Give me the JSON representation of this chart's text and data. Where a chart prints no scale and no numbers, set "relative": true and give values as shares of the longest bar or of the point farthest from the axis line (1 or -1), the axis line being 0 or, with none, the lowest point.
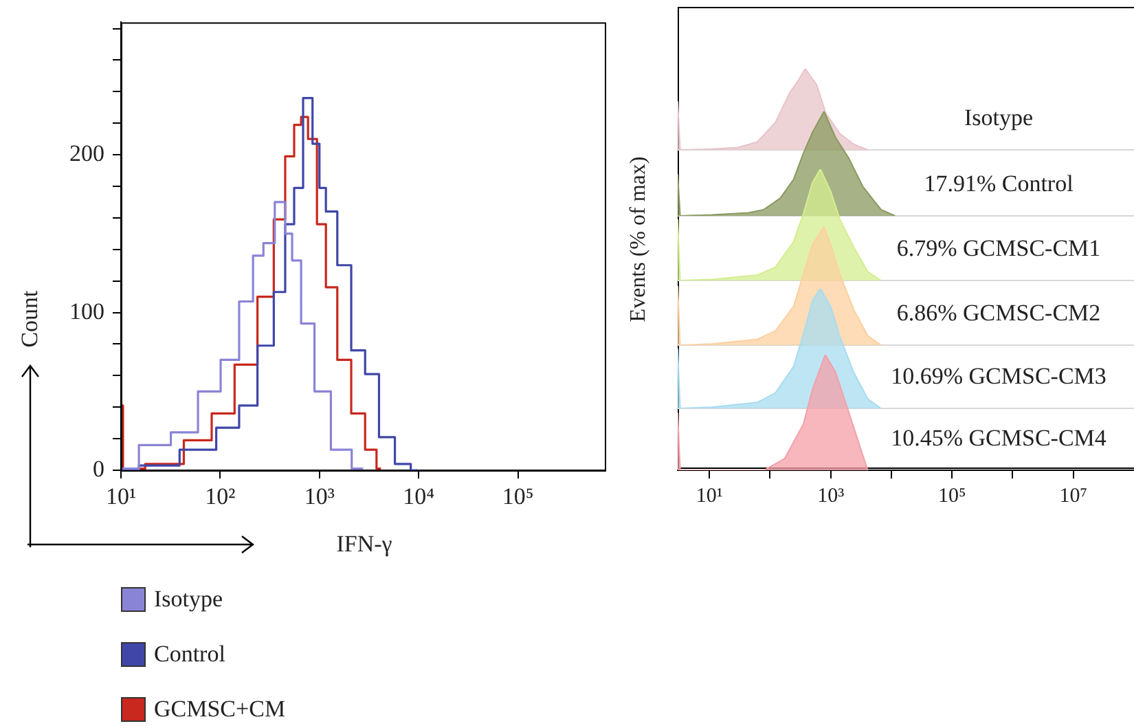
{
  "chart_data": [
    {
      "type": "step",
      "xlabel": "IFN-γ",
      "ylabel": "Count",
      "log": "x",
      "xlim": [
        10,
        750000
      ],
      "ylim": [
        0,
        284
      ],
      "xticks": [
        {
          "value": 10,
          "label": "10¹"
        },
        {
          "value": 100,
          "label": "10²"
        },
        {
          "value": 1000,
          "label": "10³"
        },
        {
          "value": 10000,
          "label": "10⁴"
        },
        {
          "value": 100000,
          "label": "10⁵"
        }
      ],
      "yticks": [
        0,
        {
          "value": 20,
          "label": null
        },
        {
          "value": 40,
          "label": null
        },
        {
          "value": 60,
          "label": null
        },
        {
          "value": 80,
          "label": null
        },
        100,
        {
          "value": 120,
          "label": null
        },
        {
          "value": 140,
          "label": null
        },
        {
          "value": 160,
          "label": null
        },
        {
          "value": 180,
          "label": null
        },
        200,
        {
          "value": 220,
          "label": null
        },
        {
          "value": 240,
          "label": null
        },
        {
          "value": 260,
          "label": null
        },
        {
          "value": 280,
          "label": null
        }
      ],
      "legend": "bottom",
      "series": [
        {
          "name": "Isotype",
          "color": "#8a84d6",
          "x": [
            10,
            23,
            44,
            81,
            126,
            191,
            240,
            309,
            407,
            501,
            562,
            759,
            1047,
            1622,
            2754
          ],
          "values": [
            1,
            16,
            24,
            50,
            70,
            107,
            136,
            144,
            170,
            150,
            133,
            93,
            50,
            13,
            1
          ]
        },
        {
          "name": "Control",
          "color": "#3f46a8",
          "x": [
            10,
            23,
            66,
            126,
            191,
            295,
            407,
            501,
            617,
            759,
            955,
            1047,
            1288,
            1778,
            2455,
            3388,
            4677,
            7079,
            9772
          ],
          "values": [
            0,
            3,
            13,
            27,
            41,
            79,
            113,
            156,
            179,
            236,
            207,
            179,
            164,
            130,
            76,
            61,
            21,
            4,
            0
          ]
        },
        {
          "name": "GCMSC+CM",
          "color": "#c8281e",
          "x": [
            10,
            11,
            28,
            66,
            102,
            191,
            295,
            407,
            501,
            617,
            692,
            851,
            1047,
            1288,
            1778,
            2455,
            3388,
            4169
          ],
          "values": [
            41,
            1,
            4,
            19,
            36,
            67,
            110,
            159,
            199,
            219,
            224,
            210,
            156,
            116,
            70,
            36,
            13,
            1
          ]
        }
      ]
    },
    {
      "type": "area",
      "relative": true,
      "ylabel": "Events (% of max)",
      "log": "x",
      "xlim": [
        3,
        100000000
      ],
      "tick_labels": false,
      "annotations": [
        "Isotype"
      ],
      "x": [
        3,
        3.3,
        3.8,
        11,
        30,
        62,
        123,
        209,
        295,
        380,
        589,
        832,
        1413,
        2399,
        4074
      ],
      "series": [
        {
          "color": "#e8c4c8",
          "values": [
            0.6,
            0,
            0,
            0.01,
            0.03,
            0.1,
            0.34,
            0.7,
            0.86,
            1,
            0.8,
            0.45,
            0.2,
            0.07,
            0
          ]
        }
      ]
    },
    {
      "type": "area",
      "relative": true,
      "log": "x",
      "xlim": [
        3,
        100000000
      ],
      "tick_labels": false,
      "annotations": [
        "17.91% Control"
      ],
      "x": [
        3,
        3.3,
        11,
        44,
        79,
        148,
        245,
        355,
        501,
        776,
        1202,
        1995,
        3388,
        6761,
        11482
      ],
      "series": [
        {
          "color": "#8a9a60",
          "values": [
            0.4,
            0,
            0.01,
            0.03,
            0.06,
            0.17,
            0.35,
            0.6,
            0.8,
            1,
            0.75,
            0.55,
            0.28,
            0.06,
            0
          ]
        }
      ]
    },
    {
      "type": "area",
      "relative": true,
      "log": "x",
      "xlim": [
        3,
        100000000
      ],
      "tick_labels": false,
      "annotations": [
        "6.79% GCMSC-CM1"
      ],
      "x": [
        3,
        3.3,
        11,
        62,
        123,
        245,
        355,
        501,
        676,
        1000,
        1413,
        2399,
        4074,
        6761
      ],
      "series": [
        {
          "color": "#d4ee90",
          "values": [
            0.55,
            0,
            0.01,
            0.05,
            0.12,
            0.35,
            0.6,
            0.88,
            1,
            0.8,
            0.55,
            0.3,
            0.08,
            0
          ]
        }
      ]
    },
    {
      "type": "area",
      "relative": true,
      "log": "x",
      "xlim": [
        3,
        100000000
      ],
      "tick_labels": false,
      "annotations": [
        "6.86% GCMSC-CM2"
      ],
      "x": [
        3,
        3.3,
        11,
        62,
        123,
        245,
        355,
        501,
        776,
        1000,
        1413,
        2399,
        4074,
        6761
      ],
      "series": [
        {
          "color": "#fdd0a0",
          "values": [
            0.5,
            0,
            0.01,
            0.05,
            0.12,
            0.33,
            0.6,
            0.85,
            1,
            0.85,
            0.6,
            0.3,
            0.08,
            0
          ]
        }
      ]
    },
    {
      "type": "area",
      "relative": true,
      "log": "x",
      "xlim": [
        3,
        100000000
      ],
      "tick_labels": false,
      "annotations": [
        "10.69% GCMSC-CM3"
      ],
      "x": [
        3,
        3.3,
        11,
        62,
        123,
        245,
        355,
        501,
        676,
        1000,
        1413,
        2399,
        4074,
        6761
      ],
      "series": [
        {
          "color": "#a8dcf0",
          "values": [
            0.5,
            0,
            0.01,
            0.05,
            0.13,
            0.35,
            0.62,
            0.9,
            1,
            0.85,
            0.6,
            0.3,
            0.08,
            0
          ]
        }
      ]
    },
    {
      "type": "area",
      "relative": true,
      "log": "x",
      "xlim": [
        3,
        100000000
      ],
      "tick_labels": "x",
      "annotations": [
        "10.45% GCMSC-CM4"
      ],
      "x": [
        3,
        3.3,
        79,
        174,
        355,
        501,
        813,
        1202,
        1995,
        4074
      ],
      "xticks": [
        {
          "value": 10,
          "label": "10¹"
        },
        {
          "value": 100,
          "label": null
        },
        {
          "value": 1000,
          "label": "10³"
        },
        {
          "value": 10000,
          "label": null
        },
        {
          "value": 100000,
          "label": "10⁵"
        },
        {
          "value": 1000000,
          "label": null
        },
        {
          "value": 10000000,
          "label": "10⁷"
        }
      ],
      "series": [
        {
          "color": "#f4a0a8",
          "values": [
            0.5,
            0,
            0,
            0.1,
            0.4,
            0.7,
            1,
            0.85,
            0.5,
            0
          ]
        }
      ]
    }
  ]
}
